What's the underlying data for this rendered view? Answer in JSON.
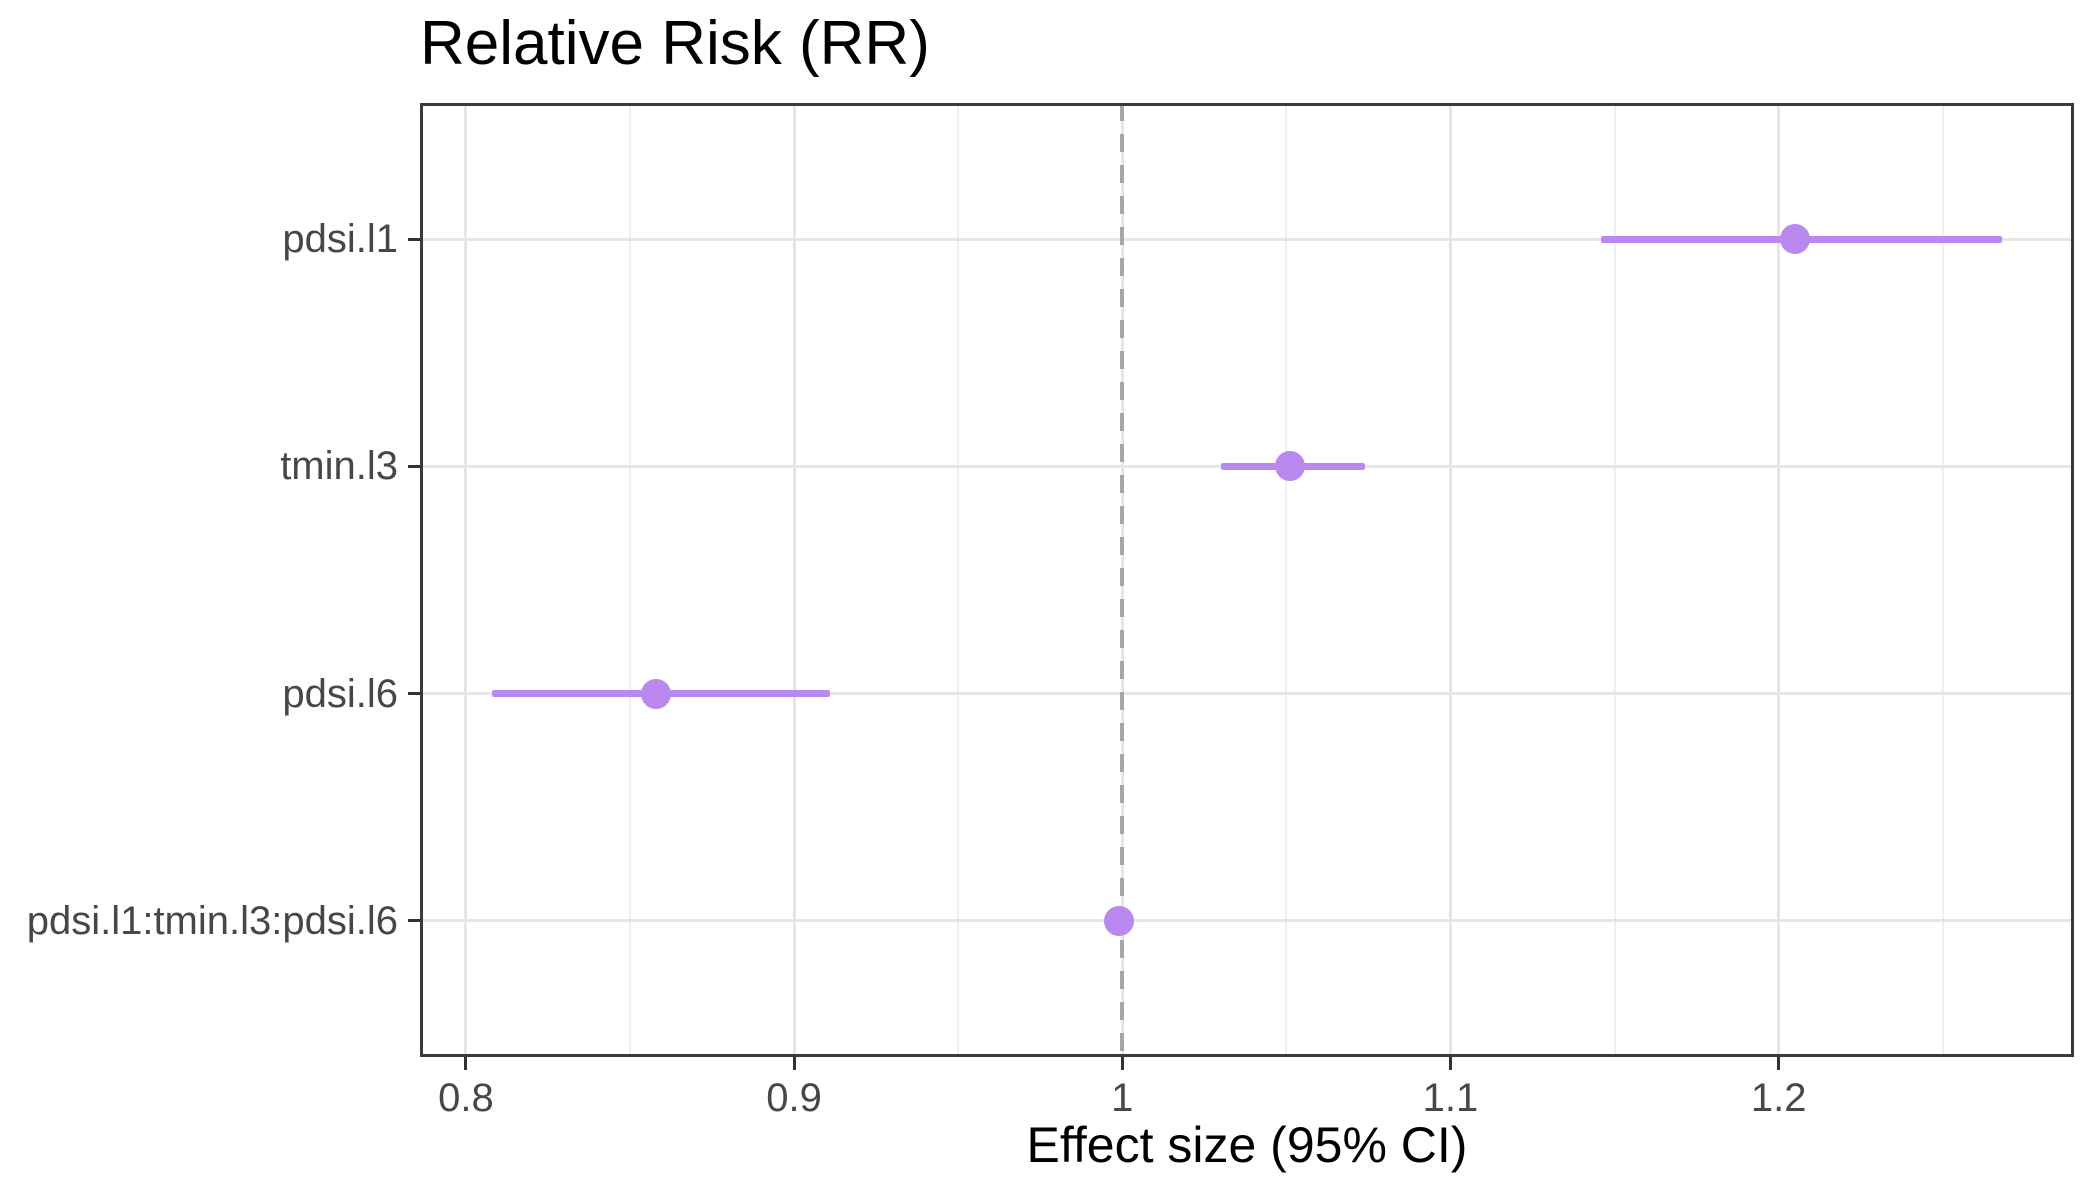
{
  "chart_data": {
    "type": "scatter",
    "subtype": "forest-plot-point-range",
    "title": "Relative Risk (RR)",
    "xlabel": "Effect size (95% CI)",
    "ylabel": "",
    "xlim": [
      0.786,
      1.29
    ],
    "x_major_ticks": [
      0.8,
      0.9,
      1.0,
      1.1,
      1.2
    ],
    "x_tick_labels": [
      "0.8",
      "0.9",
      "1",
      "1.1",
      "1.2"
    ],
    "x_minor_ticks": [
      0.85,
      0.95,
      1.05,
      1.15,
      1.25
    ],
    "reference_line_x": 1.0,
    "grid": "on",
    "legend": "none",
    "series": [
      {
        "label": "pdsi.l1",
        "estimate": 1.205,
        "ci_low": 1.146,
        "ci_high": 1.268
      },
      {
        "label": "tmin.l3",
        "estimate": 1.051,
        "ci_low": 1.03,
        "ci_high": 1.074
      },
      {
        "label": "pdsi.l6",
        "estimate": 0.858,
        "ci_low": 0.808,
        "ci_high": 0.911
      },
      {
        "label": "pdsi.l1:tmin.l3:pdsi.l6",
        "estimate": 0.999,
        "ci_low": 0.996,
        "ci_high": 1.002
      }
    ],
    "colors": {
      "point": "#ba89f0",
      "ci_line": "#ba89f0",
      "reference_line": "#a6a6a6",
      "grid_major": "#e6e6e6",
      "grid_minor": "#f0f0f0",
      "panel_border": "#3a3a3a",
      "axis_text": "#474747",
      "title_text": "#000000"
    }
  }
}
